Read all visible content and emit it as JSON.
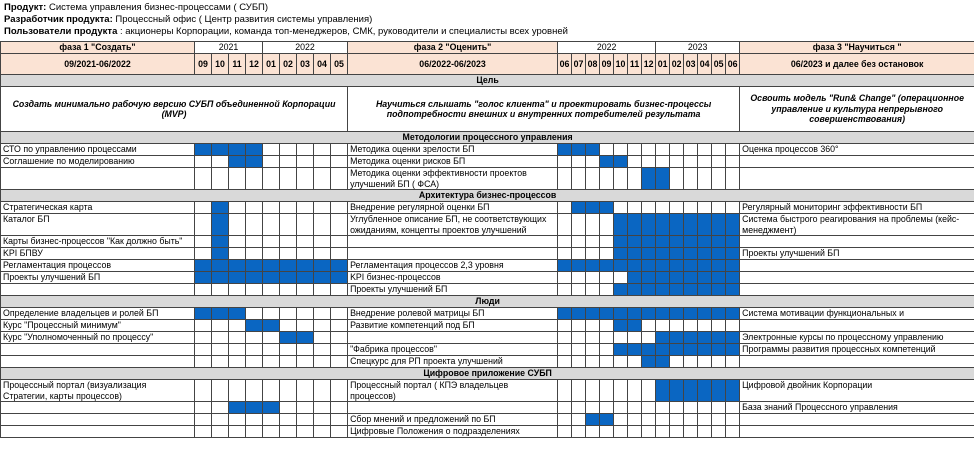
{
  "header": [
    {
      "label": "Продукт:",
      "text": "Система управления бизнес-процессами ( СУБП)"
    },
    {
      "label": "Разработчик продукта:",
      "text": "Процессный офис ( Центр развития системы управления)"
    },
    {
      "label": "Пользователи продукта",
      "text": ": акционеры Корпорации, команда топ-менеджеров, СМК, руководители и специалисты всех уровней"
    }
  ],
  "phases": [
    {
      "title": "фаза 1 \"Создать\"",
      "period": "09/2021-06/2022",
      "years": [
        {
          "year": "2021",
          "months": [
            "09",
            "10",
            "11",
            "12"
          ]
        },
        {
          "year": "2022",
          "months": [
            "01",
            "02",
            "03",
            "04",
            "05"
          ]
        }
      ]
    },
    {
      "title": "фаза 2 \"Оценить\"",
      "period": "06/2022-06/2023",
      "years": [
        {
          "year": "2022",
          "months": [
            "06",
            "07",
            "08",
            "09",
            "10",
            "11",
            "12"
          ]
        },
        {
          "year": "2023",
          "months": [
            "01",
            "02",
            "03",
            "04",
            "05",
            "06"
          ]
        }
      ]
    },
    {
      "title": "фаза 3 \"Научиться \"",
      "period": "06/2023 и далее без остановок"
    }
  ],
  "goal": {
    "title": "Цель",
    "texts": [
      "Создать минимально рабочую версию  СУБП объединенной Корпорации (MVP)",
      "Научиться слышать \"голос клиента\" и проектировать  бизнес-процессы подпотребности внешних и внутренних потребителей результата",
      "Освоить модель \"Run& Change\" (операционное управление и культура непрерывного совершенствования)"
    ]
  },
  "sections": [
    {
      "title": "Методологии процессного управления",
      "rows": [
        {
          "left": "СТО по управлению процессами",
          "p1": [
            1,
            1,
            1,
            1,
            0,
            0,
            0,
            0,
            0
          ],
          "mid": "Методика оценки зрелости БП",
          "p2": [
            1,
            1,
            1,
            0,
            0,
            0,
            0,
            0,
            0,
            0,
            0,
            0,
            0
          ],
          "right": "Оценка процессов 360°"
        },
        {
          "left": "Соглашение по моделированию",
          "p1": [
            0,
            0,
            1,
            1,
            0,
            0,
            0,
            0,
            0
          ],
          "mid": "Методика оценки рисков БП",
          "p2": [
            0,
            0,
            0,
            1,
            1,
            0,
            0,
            0,
            0,
            0,
            0,
            0,
            0
          ],
          "right": null
        },
        {
          "left": null,
          "p1": [
            0,
            0,
            0,
            0,
            0,
            0,
            0,
            0,
            0
          ],
          "mid": "Методика оценки эффективности проектов улучшений БП ( ФСА)",
          "p2": [
            0,
            0,
            0,
            0,
            0,
            0,
            1,
            1,
            0,
            0,
            0,
            0,
            0
          ],
          "right": null
        }
      ]
    },
    {
      "title": "Архитектура бизнес-процессов",
      "rows": [
        {
          "left": "Стратегическая карта",
          "p1": [
            0,
            1,
            0,
            0,
            0,
            0,
            0,
            0,
            0
          ],
          "mid": "Внедрение регулярной оценки  БП",
          "p2": [
            0,
            1,
            1,
            1,
            0,
            0,
            0,
            0,
            0,
            0,
            0,
            0,
            0
          ],
          "right": "Регулярный мониторинг эффективности БП"
        },
        {
          "left": "Каталог БП",
          "p1": [
            0,
            1,
            0,
            0,
            0,
            0,
            0,
            0,
            0
          ],
          "mid": "Углубленное описание БП, не соответствующих ожиданиям, концепты проектов улучшений",
          "p2": [
            0,
            0,
            0,
            0,
            1,
            1,
            1,
            1,
            1,
            1,
            1,
            1,
            1
          ],
          "right": "Система быстрого реагирования на проблемы (кейс-менеджмент)"
        },
        {
          "left": "Карты бизнес-процессов      \"Как должно быть\"",
          "p1": [
            0,
            1,
            0,
            0,
            0,
            0,
            0,
            0,
            0
          ],
          "mid": null,
          "p2": [
            0,
            0,
            0,
            0,
            1,
            1,
            1,
            1,
            1,
            1,
            1,
            1,
            1
          ],
          "right": null
        },
        {
          "left": "KPI БПВУ",
          "p1": [
            0,
            1,
            0,
            0,
            0,
            0,
            0,
            0,
            0
          ],
          "mid": null,
          "p2": [
            0,
            0,
            0,
            0,
            1,
            1,
            1,
            1,
            1,
            1,
            1,
            1,
            1
          ],
          "right": "Проекты улучшений БП"
        },
        {
          "left": "Регламентация процессов",
          "p1": [
            1,
            1,
            1,
            1,
            1,
            1,
            1,
            1,
            1
          ],
          "mid": "Регламентация процессов 2,3 уровня",
          "p2": [
            1,
            1,
            1,
            1,
            1,
            1,
            1,
            1,
            1,
            1,
            1,
            1,
            1
          ],
          "right": null
        },
        {
          "left": "Проекты улучшений БП",
          "p1": [
            1,
            1,
            1,
            1,
            1,
            1,
            1,
            1,
            1
          ],
          "mid": "KPI   бизнес-процессов",
          "p2": [
            0,
            0,
            0,
            0,
            0,
            1,
            1,
            1,
            1,
            1,
            1,
            1,
            1
          ],
          "right": null
        },
        {
          "left": null,
          "p1": [
            0,
            0,
            0,
            0,
            0,
            0,
            0,
            0,
            0
          ],
          "mid": "Проекты улучшений БП",
          "p2": [
            0,
            0,
            0,
            0,
            1,
            1,
            1,
            1,
            1,
            1,
            1,
            1,
            1
          ],
          "right": null
        }
      ]
    },
    {
      "title": "Люди",
      "rows": [
        {
          "left": "Определение владельцев и ролей БП",
          "p1": [
            1,
            1,
            1,
            0,
            0,
            0,
            0,
            0,
            0
          ],
          "mid": "Внедрение ролевой матрицы БП",
          "p2": [
            1,
            1,
            1,
            1,
            1,
            1,
            1,
            1,
            1,
            1,
            1,
            1,
            1
          ],
          "right": "Система мотивации функциональных и"
        },
        {
          "left": "Курс \"Процессный минимум\"",
          "p1": [
            0,
            0,
            0,
            1,
            1,
            0,
            0,
            0,
            0
          ],
          "mid": "Развитие компетенций под БП",
          "p2": [
            0,
            0,
            0,
            0,
            1,
            1,
            0,
            0,
            0,
            0,
            0,
            0,
            0
          ],
          "right": null
        },
        {
          "left": "Курс \"Уполномоченный по процессу\"",
          "p1": [
            0,
            0,
            0,
            0,
            0,
            1,
            1,
            0,
            0
          ],
          "mid": null,
          "p2": [
            0,
            0,
            0,
            0,
            0,
            0,
            0,
            1,
            1,
            1,
            1,
            1,
            1
          ],
          "right": "Электронные курсы по процессному управлению"
        },
        {
          "left": null,
          "p1": [
            0,
            0,
            0,
            0,
            0,
            0,
            0,
            0,
            0
          ],
          "mid": "\"Фабрика процессов\"",
          "p2": [
            0,
            0,
            0,
            0,
            1,
            1,
            1,
            1,
            1,
            1,
            1,
            1,
            1
          ],
          "right": "Программы развития процессных компетенций"
        },
        {
          "left": null,
          "p1": [
            0,
            0,
            0,
            0,
            0,
            0,
            0,
            0,
            0
          ],
          "mid": "Спецкурс  для РП проекта улучшений",
          "p2": [
            0,
            0,
            0,
            0,
            0,
            0,
            1,
            1,
            0,
            0,
            0,
            0,
            0
          ],
          "right": null
        }
      ]
    },
    {
      "title": "Цифровое приложение  СУБП",
      "rows": [
        {
          "left": "Процессный портал  (визуализация Стратегии, карты процессов)",
          "p1": [
            0,
            0,
            0,
            0,
            0,
            0,
            0,
            0,
            0
          ],
          "mid": "Процессный портал ( КПЭ владельцев процессов)",
          "p2": [
            0,
            0,
            0,
            0,
            0,
            0,
            0,
            1,
            1,
            1,
            1,
            1,
            1
          ],
          "right": "Цифровой двойник Корпорации"
        },
        {
          "left": null,
          "p1": [
            0,
            0,
            1,
            1,
            1,
            0,
            0,
            0,
            0
          ],
          "mid": null,
          "p2": [
            0,
            0,
            0,
            0,
            0,
            0,
            0,
            0,
            0,
            0,
            0,
            0,
            0
          ],
          "right": "База знаний Процессного управления"
        },
        {
          "left": null,
          "p1": [
            0,
            0,
            0,
            0,
            0,
            0,
            0,
            0,
            0
          ],
          "mid": "Сбор мнений и предложений по БП",
          "p2": [
            0,
            0,
            1,
            1,
            0,
            0,
            0,
            0,
            0,
            0,
            0,
            0,
            0
          ],
          "right": null
        },
        {
          "left": null,
          "p1": [
            0,
            0,
            0,
            0,
            0,
            0,
            0,
            0,
            0
          ],
          "mid": "Цифровые Положения о подразделениях",
          "p2": [
            0,
            0,
            0,
            0,
            0,
            0,
            0,
            0,
            0,
            0,
            0,
            0,
            0
          ],
          "right": null
        }
      ]
    }
  ]
}
